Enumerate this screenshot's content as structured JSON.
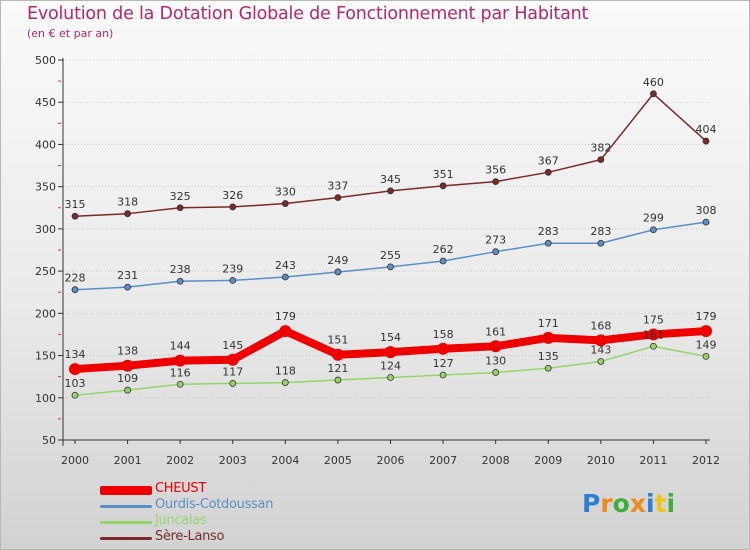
{
  "title": "Evolution de la Dotation Globale de Fonctionnement par Habitant",
  "subtitle": "(en € et par an)",
  "chart_data": {
    "type": "line",
    "title": "Evolution de la Dotation Globale de Fonctionnement par Habitant",
    "ylabel": "(en € et par an)",
    "xlabel": "",
    "categories": [
      "2000",
      "2001",
      "2002",
      "2003",
      "2004",
      "2005",
      "2006",
      "2007",
      "2008",
      "2009",
      "2010",
      "2011",
      "2012"
    ],
    "ylim": [
      50,
      500
    ],
    "yticks": [
      50,
      100,
      150,
      200,
      250,
      300,
      350,
      400,
      450,
      500
    ],
    "grid": "horizontal",
    "series": [
      {
        "name": "Sère-Lanso",
        "color": "#7a2a2a",
        "emphasis": false,
        "values": [
          315,
          318,
          325,
          326,
          330,
          337,
          345,
          351,
          356,
          367,
          382,
          460,
          404
        ]
      },
      {
        "name": "Ourdis-Cotdoussan",
        "color": "#5b8ec8",
        "emphasis": false,
        "values": [
          228,
          231,
          238,
          239,
          243,
          249,
          255,
          262,
          273,
          283,
          283,
          299,
          308
        ]
      },
      {
        "name": "Juncalas",
        "color": "#96d46a",
        "emphasis": false,
        "values": [
          103,
          109,
          116,
          117,
          118,
          121,
          124,
          127,
          130,
          135,
          143,
          161,
          149
        ]
      },
      {
        "name": "CHEUST",
        "color": "#ee0000",
        "emphasis": true,
        "values": [
          134,
          138,
          144,
          145,
          179,
          151,
          154,
          158,
          161,
          171,
          168,
          175,
          179
        ]
      }
    ]
  },
  "legend": [
    {
      "label": "CHEUST",
      "color": "#ee0000",
      "thick": true
    },
    {
      "label": "Ourdis-Cotdoussan",
      "color": "#5b8ec8",
      "thick": false
    },
    {
      "label": "Juncalas",
      "color": "#96d46a",
      "thick": false
    },
    {
      "label": "Sère-Lanso",
      "color": "#7a2a2a",
      "thick": false
    }
  ],
  "logo": {
    "letters": [
      "P",
      "r",
      "o",
      "x",
      "i",
      "t",
      "i"
    ],
    "colors": [
      "#2e7fd1",
      "#f08a1c",
      "#3fae3a",
      "#f08a1c",
      "#2e7fd1",
      "#f0c419",
      "#3fae3a"
    ]
  }
}
